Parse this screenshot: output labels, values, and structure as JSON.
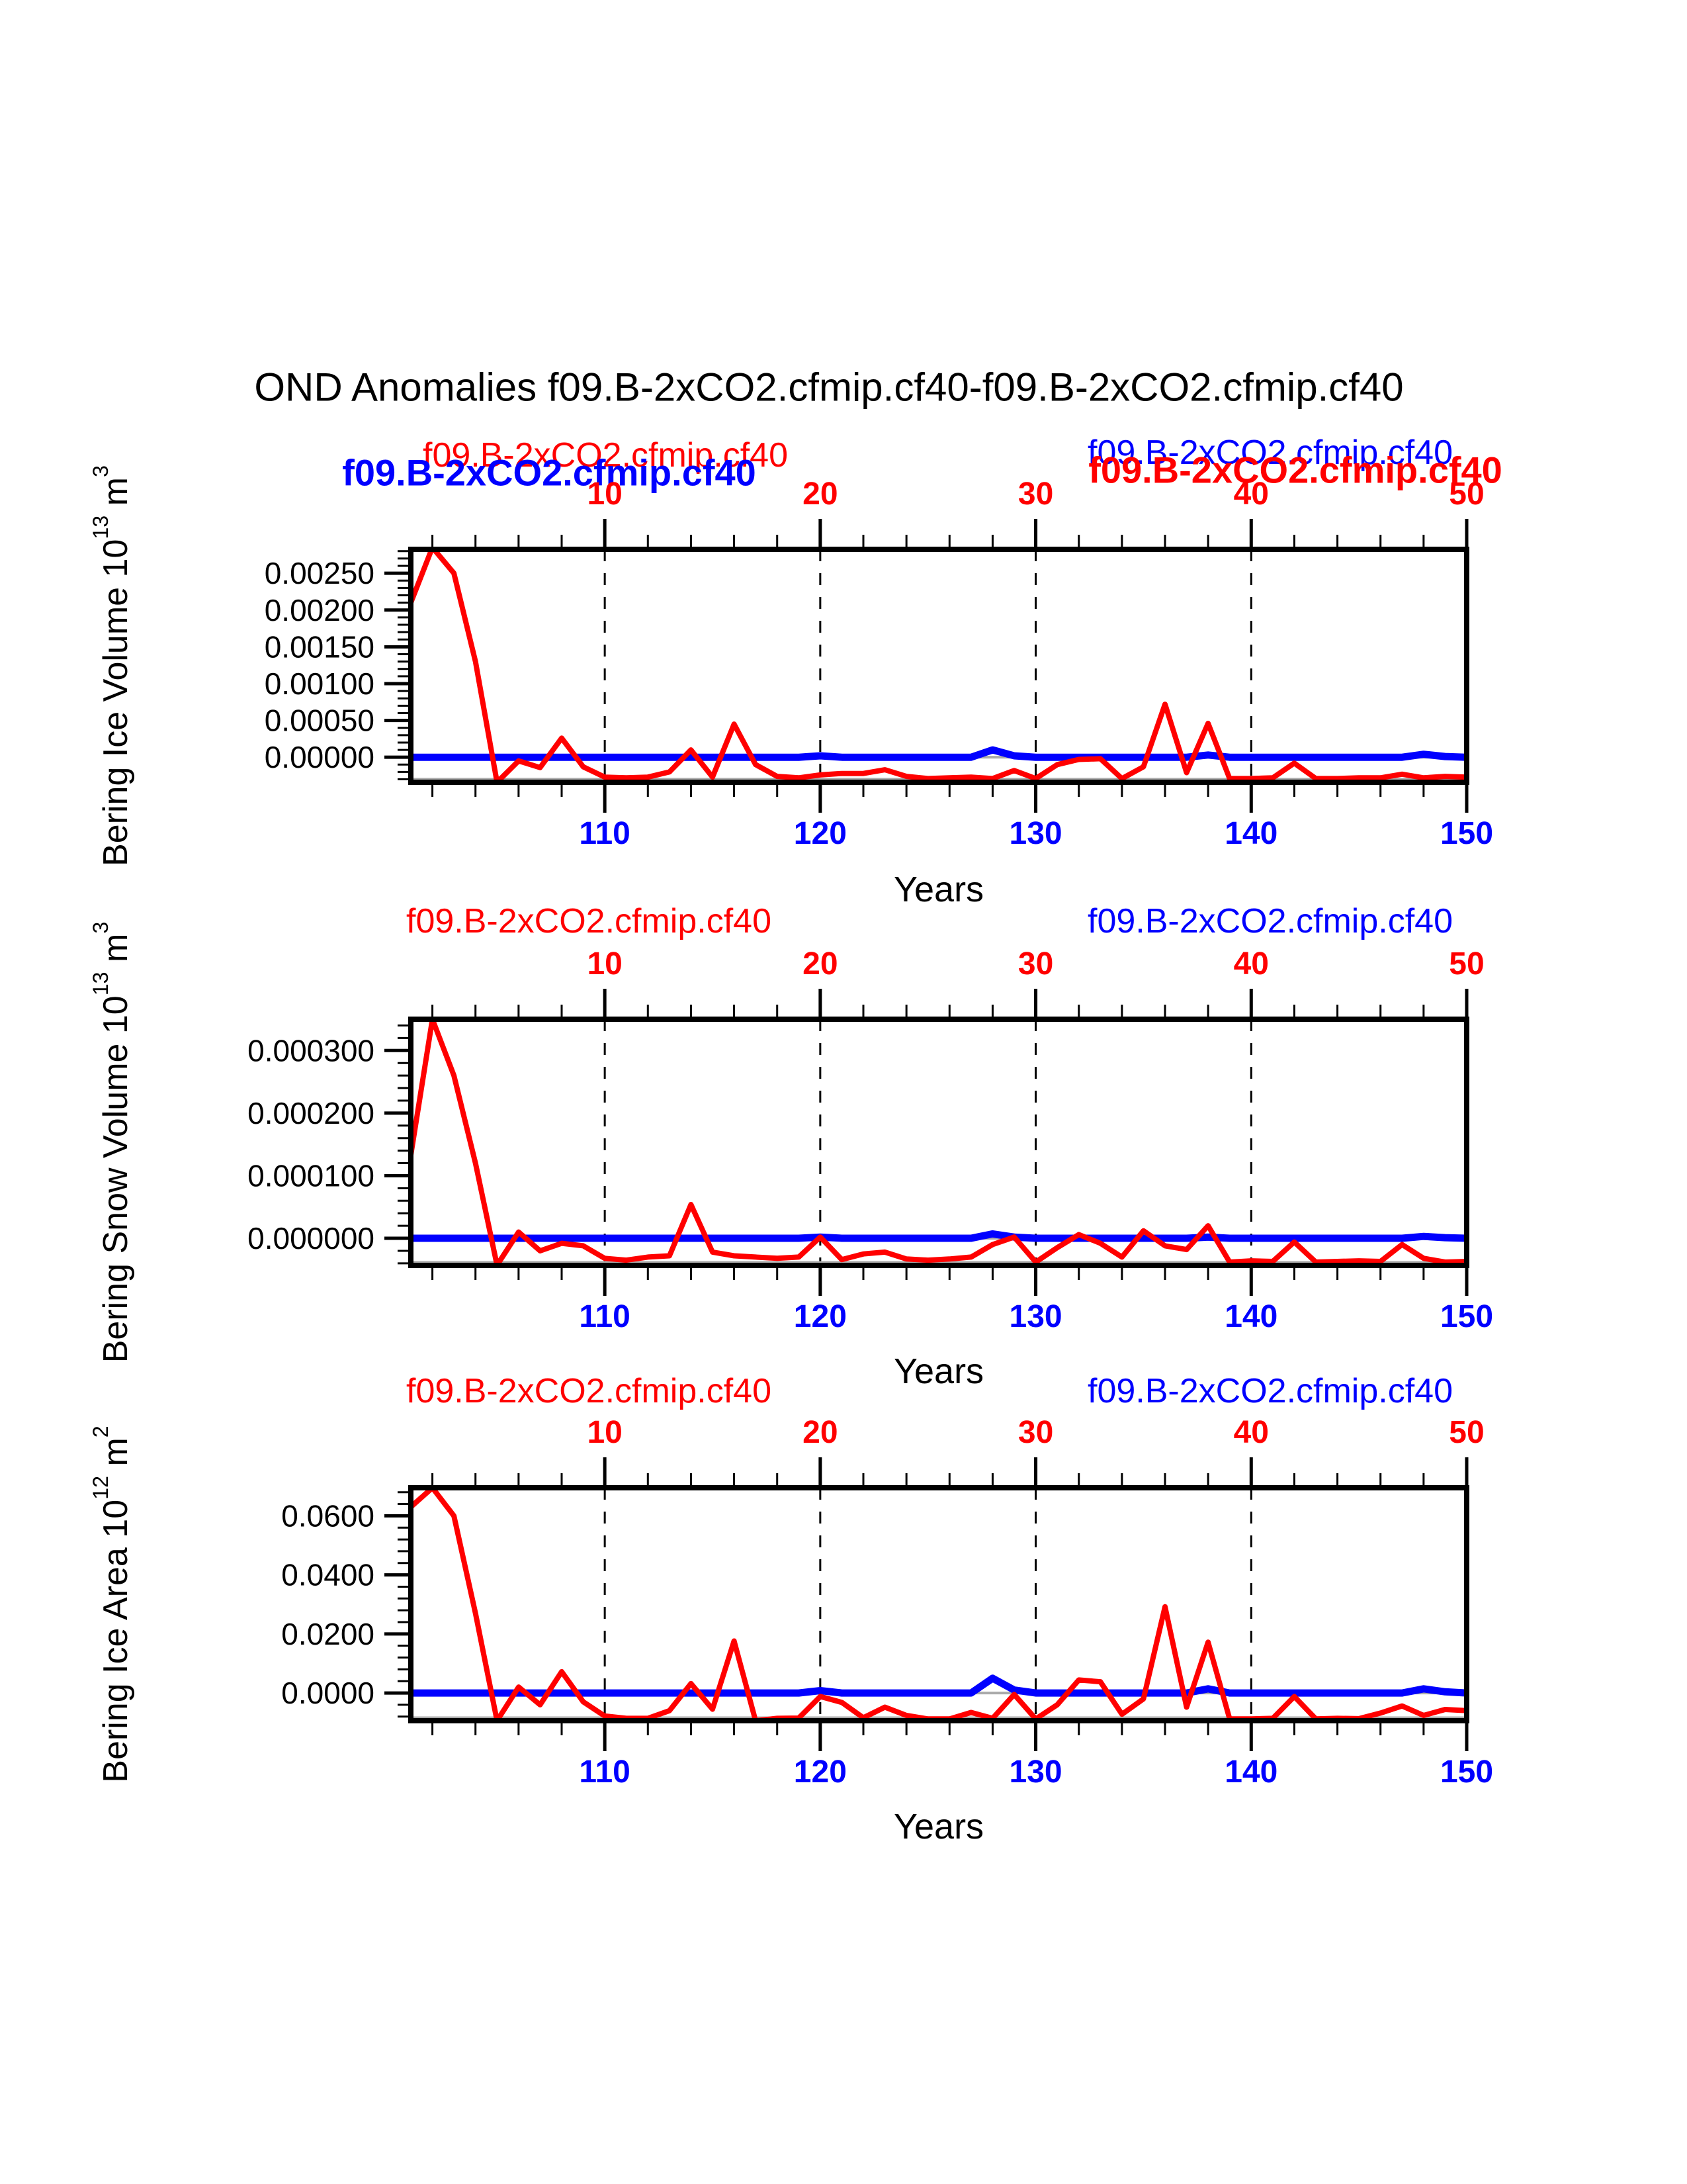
{
  "title": "OND Anomalies f09.B-2xCO2.cfmip.cf40-f09.B-2xCO2.cfmip.cf40",
  "xlabel": "Years",
  "legend": {
    "red_label": "f09.B-2xCO2.cfmip.cf40",
    "blue_label": "f09.B-2xCO2.cfmip.cf40"
  },
  "colors": {
    "red": "#ff0000",
    "blue": "#0000ff",
    "axis": "#000000",
    "zero_line": "#aaaaaa",
    "background": "#ffffff"
  },
  "axes": {
    "top_tick_labels": [
      "10",
      "20",
      "30",
      "40",
      "50"
    ],
    "top_tick_values": [
      10,
      20,
      30,
      40,
      50
    ],
    "bottom_tick_labels": [
      "110",
      "120",
      "130",
      "140",
      "150"
    ],
    "grid_years": [
      10,
      20,
      30,
      40
    ],
    "x_minor_step": 2,
    "x_range_top": [
      1,
      50
    ],
    "x_range_bottom": [
      101,
      150
    ]
  },
  "chart_data": [
    {
      "type": "line",
      "name": "bering-ice-volume",
      "ylabel": {
        "base": "Bering Ice Volume 10",
        "exp": "13",
        "unit": " m",
        "unit_exp": "3"
      },
      "ytick_labels": [
        "0.00000",
        "0.00050",
        "0.00100",
        "0.00150",
        "0.00200",
        "0.00250"
      ],
      "ytick_values": [
        0,
        0.0005,
        0.001,
        0.0015,
        0.002,
        0.0025
      ],
      "y_minor_step": 0.0001,
      "ylim": [
        -0.00034,
        0.002825
      ],
      "x_start": 1,
      "x_step": 1,
      "series": [
        {
          "name": "f09.B-2xCO2.cfmip.cf40",
          "color": "#ff0000",
          "values": [
            0.0021,
            0.00285,
            0.0025,
            0.0013,
            -0.00034,
            -5e-05,
            -0.00014,
            0.00026,
            -0.00013,
            -0.00027,
            -0.00028,
            -0.00027,
            -0.0002,
            0.0001,
            -0.00027,
            0.00045,
            -0.0001,
            -0.00026,
            -0.00028,
            -0.00024,
            -0.00022,
            -0.00022,
            -0.00017,
            -0.00026,
            -0.00029,
            -0.00028,
            -0.00027,
            -0.00029,
            -0.00018,
            -0.00029,
            -0.0001,
            -3e-05,
            -2e-05,
            -0.00029,
            -0.00013,
            0.00072,
            -0.00021,
            0.00046,
            -0.00029,
            -0.00029,
            -0.00028,
            -8e-05,
            -0.00029,
            -0.00029,
            -0.00028,
            -0.00028,
            -0.00023,
            -0.00028,
            -0.00026,
            -0.00027
          ]
        },
        {
          "name": "f09.B-2xCO2.cfmip.cf40",
          "color": "#0000ff",
          "values": [
            0,
            0,
            0,
            0,
            0,
            0,
            0,
            0,
            0,
            0,
            0,
            0,
            0,
            0,
            0,
            0,
            0,
            0,
            0,
            2e-05,
            0,
            0,
            0,
            0,
            0,
            0,
            0,
            0.0001,
            2e-05,
            0,
            0,
            0,
            0,
            0,
            0,
            0,
            0,
            3e-05,
            0,
            0,
            0,
            0,
            0,
            0,
            0,
            0,
            0,
            4e-05,
            1e-05,
            0
          ]
        }
      ]
    },
    {
      "type": "line",
      "name": "bering-snow-volume",
      "ylabel": {
        "base": "Bering Snow Volume 10",
        "exp": "13",
        "unit": " m",
        "unit_exp": "3"
      },
      "ytick_labels": [
        "0.000000",
        "0.000100",
        "0.000200",
        "0.000300"
      ],
      "ytick_values": [
        0,
        0.0001,
        0.0002,
        0.0003
      ],
      "y_minor_step": 2e-05,
      "ylim": [
        -4.33e-05,
        0.00035
      ],
      "x_start": 1,
      "x_step": 1,
      "series": [
        {
          "name": "f09.B-2xCO2.cfmip.cf40",
          "color": "#ff0000",
          "values": [
            0.000133,
            0.00035,
            0.00026,
            0.00012,
            -4.3e-05,
            1e-05,
            -2e-05,
            -8e-06,
            -1.2e-05,
            -3.2e-05,
            -3.5e-05,
            -3e-05,
            -2.8e-05,
            5.4e-05,
            -2.2e-05,
            -2.8e-05,
            -3e-05,
            -3.2e-05,
            -3e-05,
            2e-06,
            -3.4e-05,
            -2.5e-05,
            -2.2e-05,
            -3.3e-05,
            -3.5e-05,
            -3.3e-05,
            -3e-05,
            -1e-05,
            2e-06,
            -3.8e-05,
            -1.5e-05,
            6e-06,
            -8e-06,
            -3e-05,
            1.2e-05,
            -1.2e-05,
            -1.8e-05,
            2e-05,
            -3.8e-05,
            -3.6e-05,
            -3.7e-05,
            -6e-06,
            -3.8e-05,
            -3.7e-05,
            -3.6e-05,
            -3.7e-05,
            -1e-05,
            -3.2e-05,
            -3.8e-05,
            -3.7e-05
          ]
        },
        {
          "name": "f09.B-2xCO2.cfmip.cf40",
          "color": "#0000ff",
          "values": [
            0,
            0,
            0,
            0,
            0,
            0,
            0,
            0,
            0,
            0,
            0,
            0,
            0,
            0,
            0,
            0,
            0,
            0,
            0,
            2e-06,
            0,
            0,
            0,
            0,
            0,
            0,
            0,
            7e-06,
            2e-06,
            0,
            0,
            0,
            0,
            0,
            0,
            0,
            0,
            2e-06,
            0,
            0,
            0,
            0,
            0,
            0,
            0,
            0,
            0,
            3e-06,
            1e-06,
            0
          ]
        }
      ]
    },
    {
      "type": "line",
      "name": "bering-ice-area",
      "ylabel": {
        "base": "Bering Ice Area 10",
        "exp": "12",
        "unit": " m",
        "unit_exp": "2"
      },
      "ytick_labels": [
        "0.0000",
        "0.0200",
        "0.0400",
        "0.0600"
      ],
      "ytick_values": [
        0,
        0.02,
        0.04,
        0.06
      ],
      "y_minor_step": 0.004,
      "ylim": [
        -0.0094,
        0.0695
      ],
      "x_start": 1,
      "x_step": 1,
      "series": [
        {
          "name": "f09.B-2xCO2.cfmip.cf40",
          "color": "#ff0000",
          "values": [
            0.063,
            0.0695,
            0.06,
            0.027,
            -0.0094,
            0.002,
            -0.004,
            0.0072,
            -0.003,
            -0.0078,
            -0.0086,
            -0.0086,
            -0.006,
            0.0032,
            -0.0055,
            0.0176,
            -0.0094,
            -0.0086,
            -0.0085,
            -0.0012,
            -0.0032,
            -0.0084,
            -0.0048,
            -0.0076,
            -0.0088,
            -0.0088,
            -0.0066,
            -0.0086,
            -0.0005,
            -0.0088,
            -0.004,
            0.0044,
            0.0038,
            -0.0072,
            -0.002,
            0.0292,
            -0.0048,
            0.0172,
            -0.0088,
            -0.0088,
            -0.0086,
            -0.0012,
            -0.0088,
            -0.0086,
            -0.0087,
            -0.0068,
            -0.0044,
            -0.0076,
            -0.0056,
            -0.006
          ]
        },
        {
          "name": "f09.B-2xCO2.cfmip.cf40",
          "color": "#0000ff",
          "values": [
            0,
            0,
            0,
            0,
            0,
            0,
            0,
            0,
            0,
            0,
            0,
            0,
            0,
            0,
            0,
            0,
            0,
            0,
            0,
            0.0008,
            0,
            0,
            0,
            0,
            0,
            0,
            0,
            0.005,
            0.001,
            0,
            0,
            0,
            0,
            0,
            0,
            0,
            0,
            0.0014,
            0,
            0,
            0,
            0,
            0,
            0,
            0,
            0,
            0,
            0.0014,
            0.0004,
            0
          ]
        }
      ]
    }
  ]
}
